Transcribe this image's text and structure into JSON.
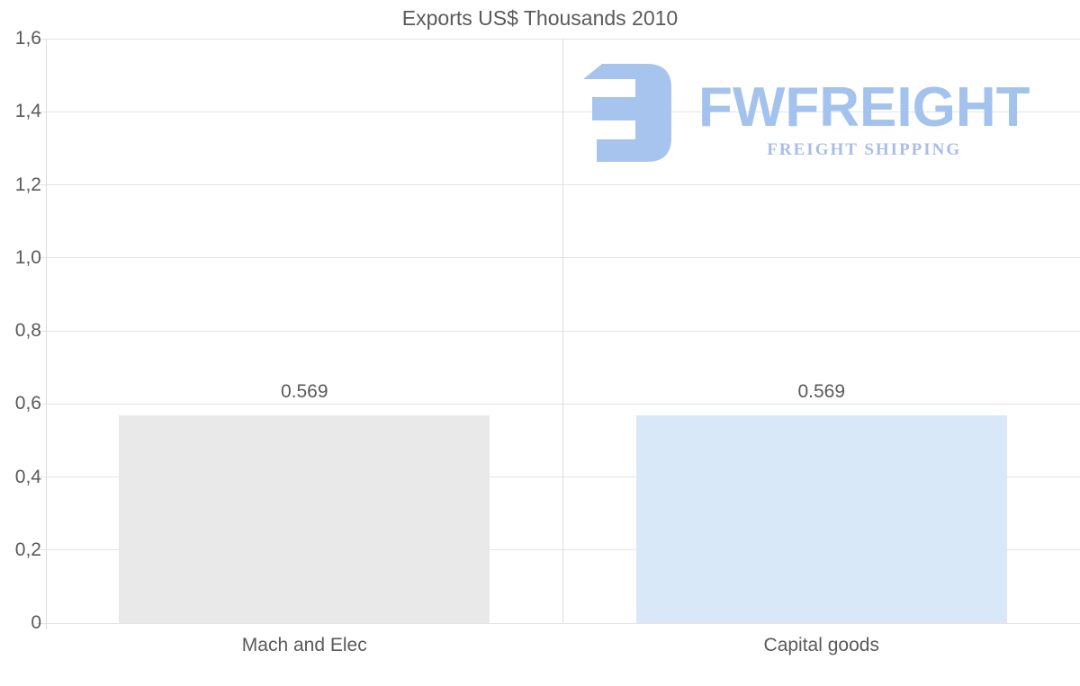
{
  "chart_data": {
    "type": "bar",
    "title": "Exports US$ Thousands 2010",
    "categories": [
      "Mach and Elec",
      "Capital goods"
    ],
    "values": [
      0.569,
      0.569
    ],
    "value_labels": [
      "0.569",
      "0.569"
    ],
    "bar_colors": [
      "#e9e9e9",
      "#d8e8f8"
    ],
    "xlabel": "",
    "ylabel": "",
    "ylim": [
      0,
      1.6
    ],
    "ytick_values": [
      0,
      0.2,
      0.4,
      0.6,
      0.8,
      1.0,
      1.2,
      1.4,
      1.6
    ],
    "ytick_labels": [
      "0",
      "0,2",
      "0,4",
      "0,6",
      "0,8",
      "1,0",
      "1,2",
      "1,4",
      "1,6"
    ],
    "grid": true,
    "legend": false,
    "decimal_separator_axis": "comma",
    "text_color": "#5a5a5a",
    "gridline_color": "#e4e4e4"
  },
  "watermark": {
    "brand": "FWFREIGHT",
    "tagline": "FREIGHT SHIPPING",
    "logo_color": "#a7c4ef",
    "brand_color": "#a3c2ee",
    "tagline_color": "#a9bde9"
  }
}
